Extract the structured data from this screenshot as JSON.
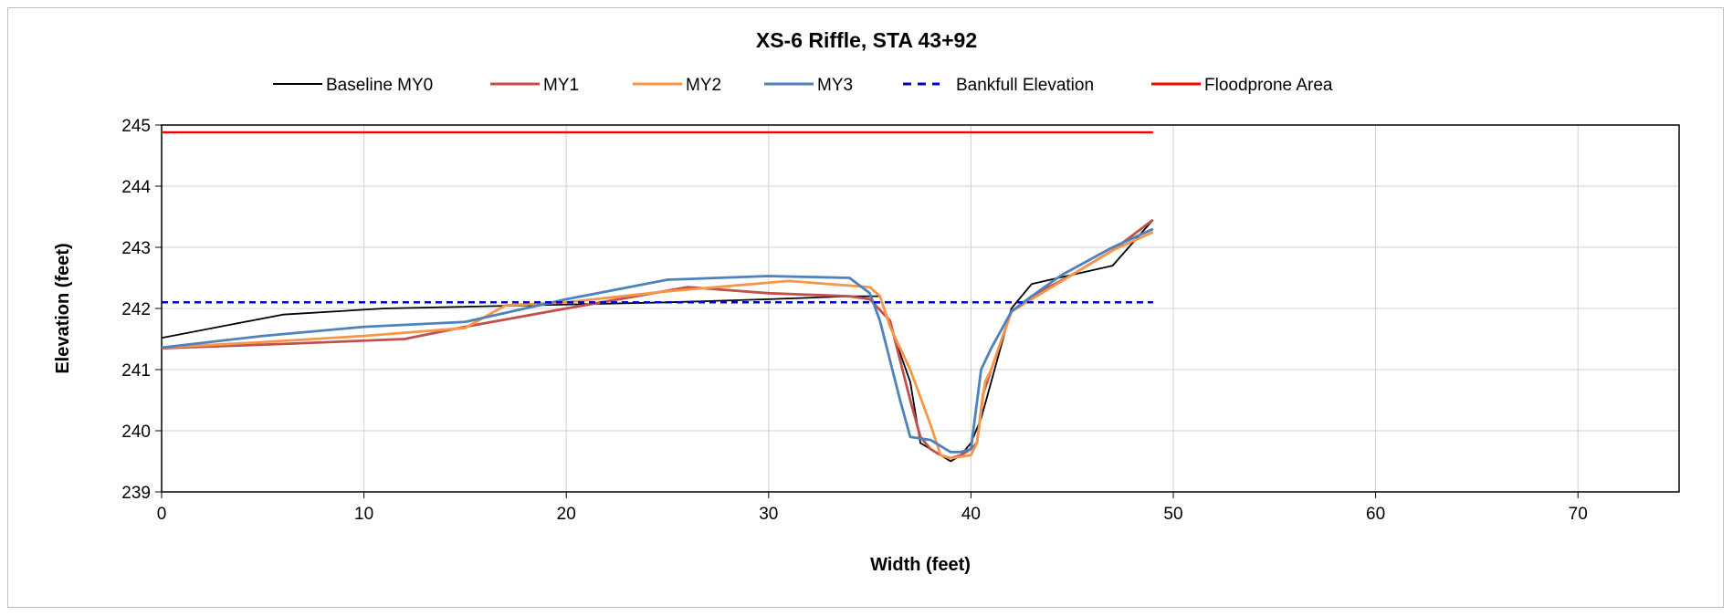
{
  "chart_data": {
    "type": "line",
    "title": "XS-6 Riffle, STA 43+92",
    "xlabel": "Width (feet)",
    "ylabel": "Elevation (feet)",
    "xlim": [
      0,
      75
    ],
    "ylim": [
      239,
      245
    ],
    "xticks": [
      0,
      10,
      20,
      30,
      40,
      50,
      60,
      70
    ],
    "yticks": [
      239,
      240,
      241,
      242,
      243,
      244,
      245
    ],
    "grid": true,
    "legend_position": "top",
    "series": [
      {
        "name": "Baseline MY0",
        "color": "#000000",
        "dash": "solid",
        "x": [
          0,
          6,
          11,
          25,
          30,
          34,
          35.5,
          37,
          37.5,
          38,
          38.5,
          39,
          39.5,
          40,
          40.5,
          41,
          42,
          43,
          45,
          47,
          49
        ],
        "y": [
          241.52,
          241.9,
          242.0,
          242.1,
          242.15,
          242.2,
          242.2,
          240.8,
          239.8,
          239.7,
          239.6,
          239.5,
          239.6,
          239.8,
          240.2,
          240.8,
          242.0,
          242.4,
          242.55,
          242.7,
          243.45
        ]
      },
      {
        "name": "MY1",
        "color": "#c0504d",
        "dash": "solid",
        "x": [
          0,
          6,
          12,
          15,
          20,
          26,
          30,
          34,
          35,
          36,
          37,
          37.5,
          38,
          38.5,
          39,
          39.5,
          40,
          40.3,
          40.6,
          41,
          42,
          43,
          45,
          47,
          49
        ],
        "y": [
          241.35,
          241.42,
          241.5,
          241.7,
          242.0,
          242.35,
          242.25,
          242.2,
          242.15,
          241.8,
          240.5,
          239.9,
          239.7,
          239.6,
          239.55,
          239.6,
          239.7,
          239.8,
          240.6,
          241.0,
          241.95,
          242.2,
          242.55,
          242.95,
          243.45
        ]
      },
      {
        "name": "MY2",
        "color": "#f79646",
        "dash": "solid",
        "x": [
          0,
          5,
          10,
          15,
          17,
          20,
          25,
          31,
          35,
          35.5,
          36,
          37,
          38,
          38.5,
          39,
          40,
          40.3,
          40.7,
          41,
          42,
          43,
          45,
          47,
          49
        ],
        "y": [
          241.36,
          241.45,
          241.55,
          241.68,
          242.05,
          242.1,
          242.28,
          242.45,
          242.35,
          242.2,
          241.7,
          241.0,
          240.1,
          239.6,
          239.55,
          239.6,
          239.8,
          240.8,
          241.0,
          241.95,
          242.15,
          242.55,
          242.95,
          243.25
        ]
      },
      {
        "name": "MY3",
        "color": "#4f81bd",
        "dash": "solid",
        "x": [
          0,
          5,
          10,
          15,
          20,
          25,
          30,
          34,
          35,
          35.5,
          36.5,
          37,
          38,
          39,
          39.5,
          40,
          40.5,
          41,
          42,
          43,
          44.5,
          47,
          49
        ],
        "y": [
          241.36,
          241.55,
          241.7,
          241.78,
          242.15,
          242.47,
          242.53,
          242.5,
          242.25,
          241.8,
          240.5,
          239.9,
          239.85,
          239.65,
          239.65,
          239.7,
          241.0,
          241.35,
          241.95,
          242.2,
          242.55,
          243.0,
          243.3
        ]
      },
      {
        "name": "Bankfull Elevation",
        "color": "#0000cc",
        "dash": "dashed",
        "x": [
          0,
          49
        ],
        "y": [
          242.1,
          242.1
        ]
      },
      {
        "name": "Floodprone Area",
        "color": "#ff0000",
        "dash": "solid",
        "x": [
          0,
          49
        ],
        "y": [
          244.88,
          244.88
        ]
      }
    ]
  }
}
